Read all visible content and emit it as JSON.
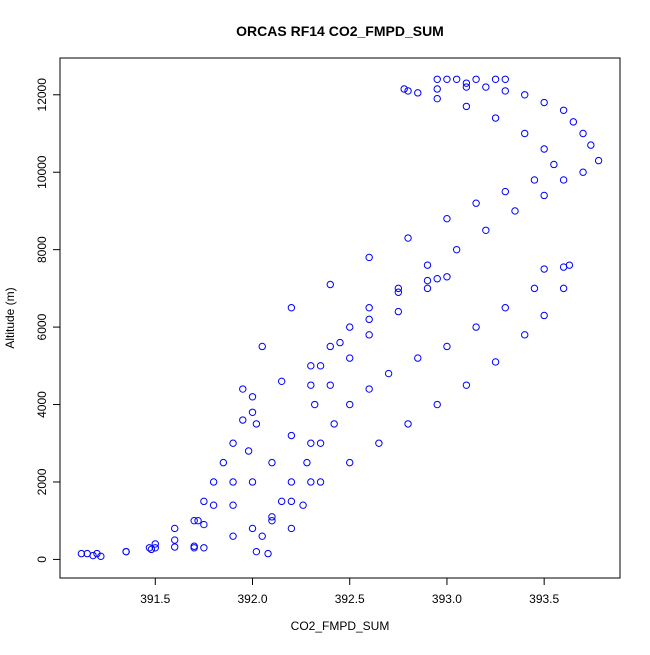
{
  "chart_data": {
    "type": "scatter",
    "title": "ORCAS RF14 CO2_FMPD_SUM",
    "x_label": "CO2_FMPD_SUM",
    "y_label": "Altitude (m)",
    "color": "#0000ff",
    "x": [
      391.15,
      391.18,
      391.22,
      391.35,
      391.48,
      391.5,
      391.6,
      391.7,
      391.75,
      391.9,
      392.0,
      392.1,
      392.2,
      392.35,
      392.5,
      392.65,
      392.8,
      392.95,
      393.1,
      393.25,
      393.4,
      393.5,
      393.6,
      393.63,
      393.6,
      393.5,
      393.45,
      393.3,
      393.15,
      393.0,
      392.85,
      392.7,
      392.6,
      392.5,
      392.42,
      392.35,
      392.28,
      392.2,
      392.15,
      392.1,
      392.05,
      392.02,
      392.08,
      392.2,
      392.26,
      392.3,
      392.3,
      392.32,
      392.4,
      392.5,
      392.6,
      392.75,
      392.9,
      393.0,
      392.95,
      392.9,
      392.75,
      392.6,
      392.45,
      392.3,
      392.15,
      392.0,
      391.95,
      391.9,
      391.85,
      391.8,
      391.75,
      391.72,
      391.7,
      391.6,
      391.75,
      391.9,
      392.0,
      392.1,
      392.2,
      392.3,
      392.35,
      392.4,
      392.5,
      392.6,
      392.75,
      392.9,
      393.05,
      393.2,
      393.35,
      393.5,
      393.6,
      393.7,
      393.78,
      393.74,
      393.7,
      393.65,
      393.6,
      393.5,
      393.4,
      393.3,
      393.2,
      393.1,
      393.0,
      392.95,
      393.05,
      393.15,
      393.25,
      393.3,
      393.1,
      392.95,
      392.8,
      392.78,
      392.85,
      392.95,
      393.1,
      393.25,
      393.4,
      393.5,
      393.55,
      393.45,
      393.3,
      393.15,
      393.0,
      392.8,
      392.6,
      392.4,
      392.2,
      392.05,
      391.95,
      392.0,
      392.02,
      391.98,
      391.9,
      391.8,
      391.7,
      391.6,
      391.5,
      391.47,
      391.35,
      391.2,
      391.12
    ],
    "y": [
      150,
      100,
      80,
      200,
      260,
      300,
      320,
      340,
      300,
      600,
      800,
      1100,
      1500,
      2000,
      2500,
      3000,
      3500,
      4000,
      4500,
      5100,
      5800,
      6300,
      7000,
      7600,
      7550,
      7500,
      7000,
      6500,
      6000,
      5500,
      5200,
      4800,
      4400,
      4000,
      3500,
      3000,
      2500,
      2000,
      1500,
      1000,
      600,
      200,
      150,
      800,
      1400,
      2000,
      3000,
      4000,
      4500,
      5200,
      5800,
      6400,
      7000,
      7300,
      7250,
      7200,
      6900,
      6200,
      5600,
      5000,
      4600,
      4200,
      3600,
      3000,
      2500,
      2000,
      1500,
      1000,
      300,
      500,
      900,
      1400,
      2000,
      2500,
      3200,
      4500,
      5000,
      5500,
      6000,
      6500,
      7000,
      7600,
      8000,
      8500,
      9000,
      9400,
      9800,
      10000,
      10300,
      10700,
      11000,
      11300,
      11600,
      11800,
      12000,
      12100,
      12200,
      12300,
      12400,
      12400,
      12400,
      12400,
      12400,
      12400,
      12200,
      12150,
      12100,
      12150,
      12050,
      11900,
      11700,
      11400,
      11000,
      10600,
      10200,
      9800,
      9500,
      9200,
      8800,
      8300,
      7800,
      7100,
      6500,
      5500,
      4400,
      3800,
      3500,
      2800,
      2000,
      1400,
      1000,
      800,
      400,
      300,
      200,
      150,
      150
    ],
    "xlim": [
      391.01,
      393.89
    ],
    "ylim": [
      -480,
      12950
    ],
    "xticks": [
      391.5,
      {
        "value": 392,
        "label": "392.0"
      },
      392.5,
      {
        "value": 393,
        "label": "393.0"
      },
      393.5
    ],
    "yticks": [
      0,
      2000,
      4000,
      6000,
      8000,
      10000,
      12000
    ]
  }
}
